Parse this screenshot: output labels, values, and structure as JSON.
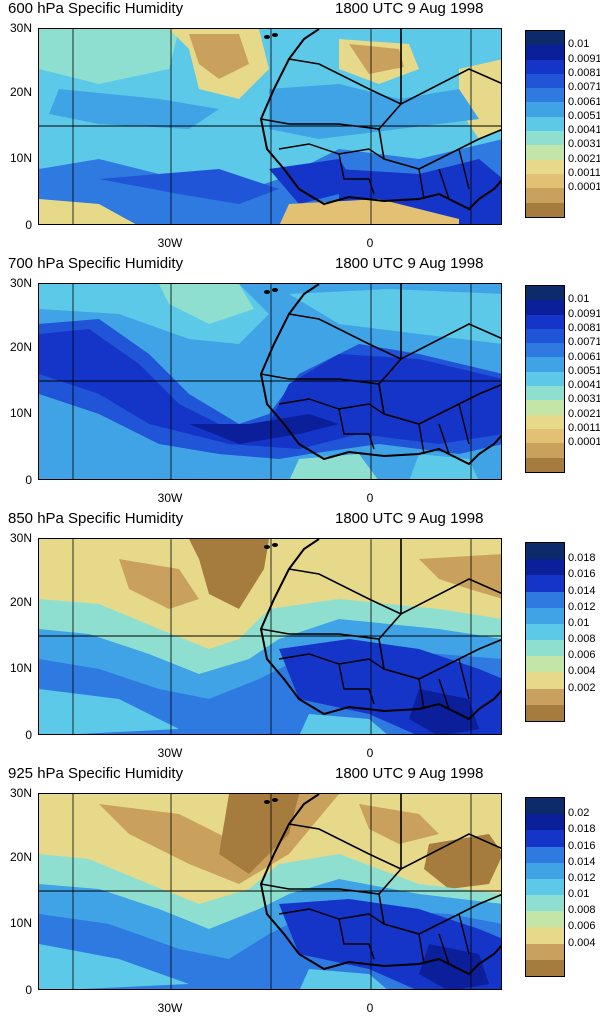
{
  "panels": [
    {
      "title": "600 hPa Specific Humidity",
      "time": "1800 UTC 9 Aug 1998",
      "yticks": [
        "30N",
        "20N",
        "10N",
        "0"
      ],
      "xticks": [
        "30W",
        "0"
      ],
      "colorbar": {
        "labels": [
          "0.01",
          "0.0091",
          "0.0081",
          "0.0071",
          "0.0061",
          "0.0051",
          "0.0041",
          "0.0031",
          "0.0021",
          "0.0011",
          "0.0001"
        ],
        "colors": [
          "#0d2a6b",
          "#0a1f99",
          "#1535c8",
          "#1f55d6",
          "#2e7ae0",
          "#3fa3e6",
          "#5cc9e8",
          "#8edfd0",
          "#c3e6a8",
          "#e6d98a",
          "#e2c074",
          "#c9a15c",
          "#a67c3e"
        ]
      },
      "bg": [
        "#c9a15c",
        "#a67c3e"
      ]
    },
    {
      "title": "700 hPa Specific Humidity",
      "time": "1800 UTC 9 Aug 1998",
      "yticks": [
        "30N",
        "20N",
        "10N",
        "0"
      ],
      "xticks": [
        "30W",
        "0"
      ],
      "colorbar": {
        "labels": [
          "0.01",
          "0.0091",
          "0.0081",
          "0.0071",
          "0.0061",
          "0.0051",
          "0.0041",
          "0.0031",
          "0.0021",
          "0.0011",
          "0.0001"
        ],
        "colors": [
          "#0d2a6b",
          "#0a1f99",
          "#1535c8",
          "#1f55d6",
          "#2e7ae0",
          "#3fa3e6",
          "#5cc9e8",
          "#8edfd0",
          "#c3e6a8",
          "#e6d98a",
          "#e2c074",
          "#c9a15c",
          "#a67c3e"
        ]
      }
    },
    {
      "title": "850 hPa Specific Humidity",
      "time": "1800 UTC 9 Aug 1998",
      "yticks": [
        "30N",
        "20N",
        "10N",
        "0"
      ],
      "xticks": [
        "30W",
        "0"
      ],
      "colorbar": {
        "labels": [
          "0.018",
          "0.016",
          "0.014",
          "0.012",
          "0.01",
          "0.008",
          "0.006",
          "0.004",
          "0.002"
        ],
        "colors": [
          "#0d2a6b",
          "#0a1f99",
          "#1535c8",
          "#2e7ae0",
          "#3fa3e6",
          "#5cc9e8",
          "#8edfd0",
          "#c3e6a8",
          "#e6d98a",
          "#c9a15c",
          "#a67c3e"
        ]
      }
    },
    {
      "title": "925 hPa Specific Humidity",
      "time": "1800 UTC 9 Aug 1998",
      "yticks": [
        "30N",
        "20N",
        "10N",
        "0"
      ],
      "xticks": [
        "30W",
        "0"
      ],
      "colorbar": {
        "labels": [
          "0.02",
          "0.018",
          "0.016",
          "0.014",
          "0.012",
          "0.01",
          "0.008",
          "0.006",
          "0.004"
        ],
        "colors": [
          "#0d2a6b",
          "#0a1f99",
          "#1535c8",
          "#2e7ae0",
          "#3fa3e6",
          "#5cc9e8",
          "#8edfd0",
          "#c3e6a8",
          "#e6d98a",
          "#c9a15c",
          "#a67c3e"
        ]
      }
    }
  ]
}
